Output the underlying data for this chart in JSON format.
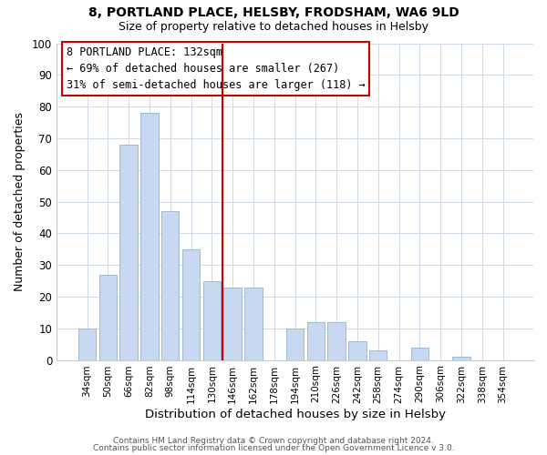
{
  "title": "8, PORTLAND PLACE, HELSBY, FRODSHAM, WA6 9LD",
  "subtitle": "Size of property relative to detached houses in Helsby",
  "xlabel": "Distribution of detached houses by size in Helsby",
  "ylabel": "Number of detached properties",
  "bar_labels": [
    "34sqm",
    "50sqm",
    "66sqm",
    "82sqm",
    "98sqm",
    "114sqm",
    "130sqm",
    "146sqm",
    "162sqm",
    "178sqm",
    "194sqm",
    "210sqm",
    "226sqm",
    "242sqm",
    "258sqm",
    "274sqm",
    "290sqm",
    "306sqm",
    "322sqm",
    "338sqm",
    "354sqm"
  ],
  "bar_values": [
    10,
    27,
    68,
    78,
    47,
    35,
    25,
    23,
    23,
    0,
    10,
    12,
    12,
    6,
    3,
    0,
    4,
    0,
    1,
    0,
    0
  ],
  "bar_color": "#c6d9f0",
  "bar_edge_color": "#a0b8d8",
  "vline_color": "#cc0000",
  "vline_x_index": 6,
  "ylim": [
    0,
    100
  ],
  "yticks": [
    0,
    10,
    20,
    30,
    40,
    50,
    60,
    70,
    80,
    90,
    100
  ],
  "annotation_title": "8 PORTLAND PLACE: 132sqm",
  "annotation_line1": "← 69% of detached houses are smaller (267)",
  "annotation_line2": "31% of semi-detached houses are larger (118) →",
  "annotation_box_color": "#ffffff",
  "annotation_box_edge": "#cc0000",
  "footer1": "Contains HM Land Registry data © Crown copyright and database right 2024.",
  "footer2": "Contains public sector information licensed under the Open Government Licence v 3.0.",
  "grid_color": "#d0dce8",
  "background_color": "#ffffff",
  "title_fontsize": 10,
  "subtitle_fontsize": 9
}
